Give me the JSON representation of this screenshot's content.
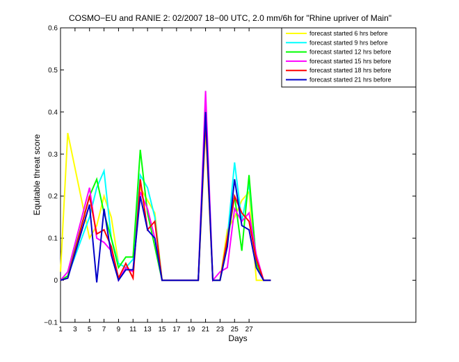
{
  "chart_data": {
    "type": "line",
    "title": "COSMO−EU and RANIE 2: 02/2007 18−00 UTC, 2.0 mm/6h for \"Rhine upriver of Main\"",
    "xlabel": "Days",
    "ylabel": "Equitable threat score",
    "xlim": [
      1,
      50
    ],
    "ylim": [
      -0.1,
      0.6
    ],
    "xticks": [
      1,
      3,
      5,
      7,
      9,
      11,
      13,
      15,
      17,
      19,
      21,
      23,
      25,
      27
    ],
    "xtick_labels": [
      "1",
      "3",
      "5",
      "7",
      "9",
      "11",
      "13",
      "15",
      "17",
      "19",
      "21",
      "23",
      "25",
      "27"
    ],
    "yticks": [
      -0.1,
      0,
      0.1,
      0.2,
      0.3,
      0.4,
      0.5,
      0.6
    ],
    "ytick_labels": [
      "−0.1",
      "0",
      "0.1",
      "0.2",
      "0.3",
      "0.4",
      "0.5",
      "0.6"
    ],
    "grid": false,
    "legend_position": "top-right",
    "series": [
      {
        "name": "forecast started 6 hrs before",
        "color": "#ffff00",
        "x": [
          1,
          2,
          5,
          6,
          7,
          8,
          9,
          10,
          11,
          12,
          13,
          14,
          15,
          16,
          19,
          20,
          21,
          22,
          23,
          24,
          25,
          26,
          27,
          28,
          29,
          30
        ],
        "y": [
          0.02,
          0.35,
          0.1,
          0.13,
          0.2,
          0.15,
          0.04,
          0.03,
          0.05,
          0.22,
          0.19,
          0.16,
          0.0,
          0.0,
          0.0,
          0.0,
          0.36,
          0.0,
          0.0,
          0.12,
          0.15,
          0.19,
          0.21,
          0.0,
          0.0,
          0.0
        ]
      },
      {
        "name": "forecast started 9 hrs before",
        "color": "#00ffff",
        "x": [
          1,
          2,
          5,
          6,
          7,
          8,
          9,
          10,
          11,
          12,
          13,
          14,
          15,
          16,
          19,
          20,
          21,
          22,
          23,
          24,
          25,
          26,
          27,
          28,
          29,
          30
        ],
        "y": [
          0.0,
          0.01,
          0.15,
          0.22,
          0.26,
          0.1,
          0.04,
          0.03,
          0.05,
          0.25,
          0.22,
          0.15,
          0.0,
          0.0,
          0.0,
          0.0,
          0.38,
          0.0,
          0.0,
          0.1,
          0.28,
          0.14,
          0.23,
          0.05,
          0.0,
          0.0
        ]
      },
      {
        "name": "forecast started 12 hrs before",
        "color": "#00ff00",
        "x": [
          1,
          2,
          5,
          6,
          7,
          8,
          9,
          10,
          11,
          12,
          13,
          14,
          15,
          16,
          19,
          20,
          21,
          22,
          23,
          24,
          25,
          26,
          27,
          28,
          29,
          30
        ],
        "y": [
          0.0,
          0.01,
          0.2,
          0.24,
          0.16,
          0.1,
          0.03,
          0.055,
          0.055,
          0.31,
          0.16,
          0.08,
          0.0,
          0.0,
          0.0,
          0.0,
          0.41,
          0.0,
          0.0,
          0.09,
          0.2,
          0.07,
          0.25,
          0.04,
          0.0,
          0.0
        ]
      },
      {
        "name": "forecast started 15 hrs before",
        "color": "#ff00ff",
        "x": [
          1,
          2,
          5,
          6,
          7,
          8,
          9,
          10,
          11,
          12,
          13,
          14,
          15,
          16,
          19,
          20,
          21,
          22,
          23,
          24,
          25,
          26,
          27,
          28,
          29,
          30
        ],
        "y": [
          0.0,
          0.02,
          0.22,
          0.1,
          0.09,
          0.07,
          0.0,
          0.03,
          0.02,
          0.21,
          0.17,
          0.1,
          0.0,
          0.0,
          0.0,
          0.0,
          0.45,
          0.0,
          0.02,
          0.03,
          0.17,
          0.14,
          0.16,
          0.06,
          0.0,
          0.0
        ]
      },
      {
        "name": "forecast started 18 hrs before",
        "color": "#ff0000",
        "x": [
          1,
          2,
          5,
          6,
          7,
          8,
          9,
          10,
          11,
          12,
          13,
          14,
          15,
          16,
          19,
          20,
          21,
          22,
          23,
          24,
          25,
          26,
          27,
          28,
          29,
          30
        ],
        "y": [
          0.0,
          0.005,
          0.2,
          0.11,
          0.12,
          0.08,
          0.005,
          0.04,
          0.005,
          0.24,
          0.12,
          0.14,
          0.0,
          0.0,
          0.0,
          0.0,
          0.38,
          0.0,
          0.0,
          0.1,
          0.2,
          0.16,
          0.14,
          0.05,
          0.0,
          0.0
        ]
      },
      {
        "name": "forecast started 21 hrs before",
        "color": "#0000c8",
        "x": [
          1,
          2,
          5,
          6,
          7,
          8,
          9,
          10,
          11,
          12,
          13,
          14,
          15,
          16,
          19,
          20,
          21,
          22,
          23,
          24,
          25,
          26,
          27,
          28,
          29,
          30
        ],
        "y": [
          0.0,
          0.005,
          0.18,
          -0.005,
          0.17,
          0.06,
          0.0,
          0.025,
          0.025,
          0.2,
          0.12,
          0.1,
          0.0,
          0.0,
          0.0,
          0.0,
          0.4,
          0.0,
          0.0,
          0.08,
          0.24,
          0.13,
          0.12,
          0.03,
          0.0,
          0.0
        ]
      }
    ]
  }
}
